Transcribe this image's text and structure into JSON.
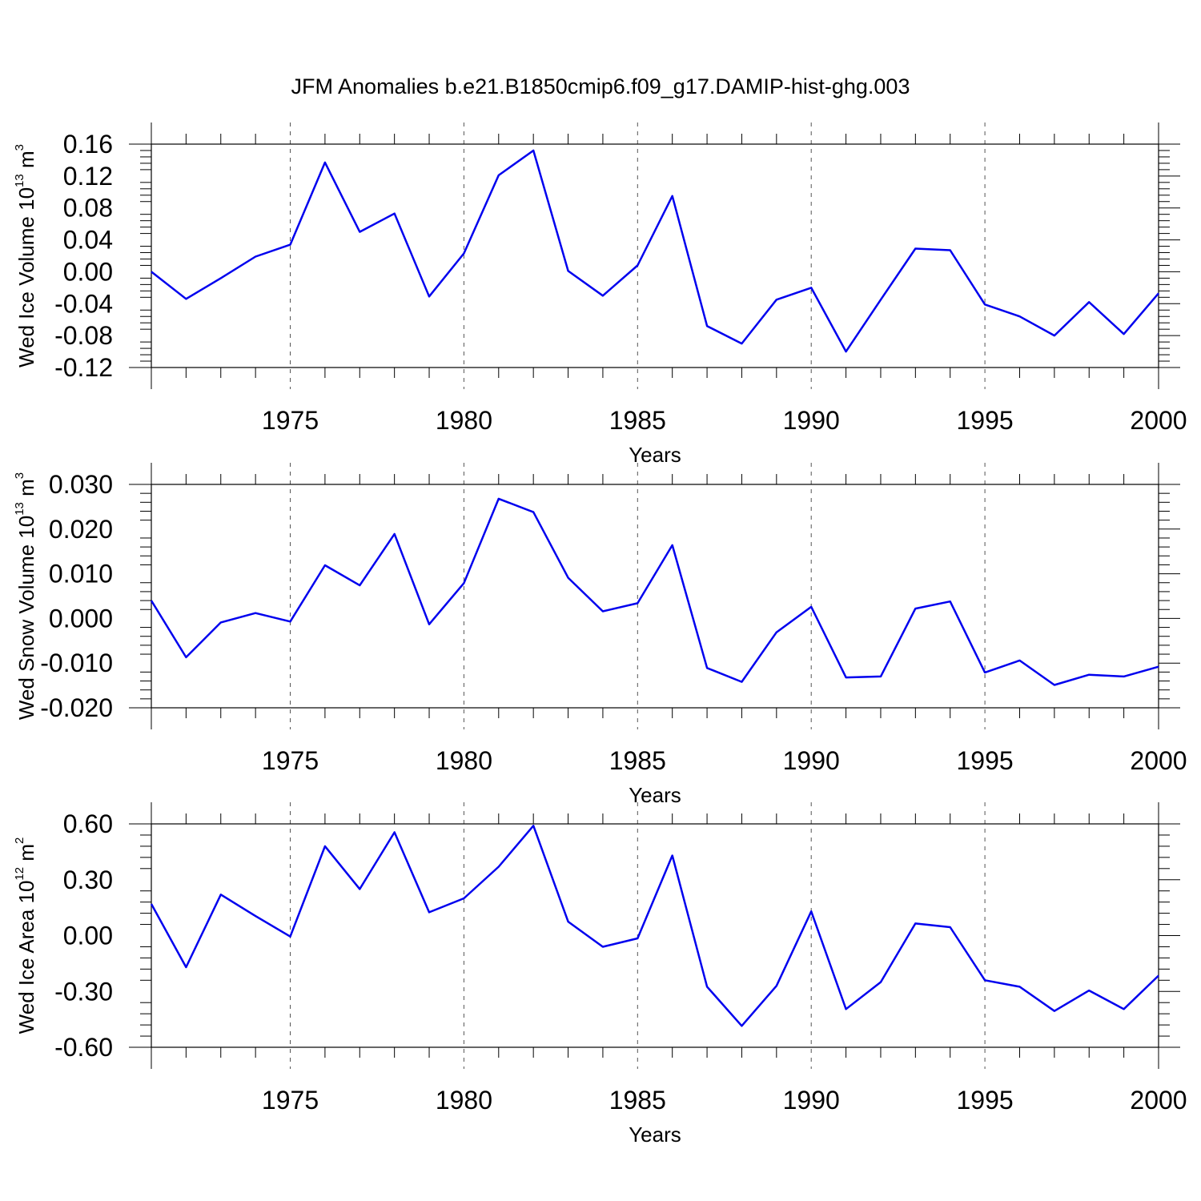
{
  "title": "JFM Anomalies b.e21.B1850cmip6.f09_g17.DAMIP-hist-ghg.003",
  "colors": {
    "line": "#0000ee"
  },
  "chart_data": [
    {
      "type": "line",
      "ylabel": "Wed Ice Volume 10",
      "ylabel_exp": "13",
      "ylabel_unit": "m",
      "ylabel_unit_exp": "3",
      "xlabel": "Years",
      "xlim": [
        1971,
        2000
      ],
      "ylim": [
        -0.12,
        0.16
      ],
      "yticks": [
        "0.16",
        "0.12",
        "0.08",
        "0.04",
        "0.00",
        "-0.04",
        "-0.08",
        "-0.12"
      ],
      "ytick_values": [
        0.16,
        0.12,
        0.08,
        0.04,
        0.0,
        -0.04,
        -0.08,
        -0.12
      ],
      "xticks": [
        "1975",
        "1980",
        "1985",
        "1990",
        "1995",
        "2000"
      ],
      "xtick_values": [
        1975,
        1980,
        1985,
        1990,
        1995,
        2000
      ],
      "x": [
        1971,
        1972,
        1973,
        1974,
        1975,
        1976,
        1977,
        1978,
        1979,
        1980,
        1981,
        1982,
        1983,
        1984,
        1985,
        1986,
        1987,
        1988,
        1989,
        1990,
        1991,
        1992,
        1993,
        1994,
        1995,
        1996,
        1997,
        1998,
        1999,
        2000
      ],
      "y": [
        0.0,
        -0.034,
        -0.008,
        0.019,
        0.034,
        0.137,
        0.05,
        0.073,
        -0.031,
        0.023,
        0.121,
        0.152,
        0.001,
        -0.03,
        0.008,
        0.095,
        -0.068,
        -0.09,
        -0.035,
        -0.02,
        -0.1,
        -0.035,
        0.029,
        0.027,
        -0.041,
        -0.056,
        -0.08,
        -0.038,
        -0.078,
        -0.027
      ],
      "grid": "vertical dashed at labeled years"
    },
    {
      "type": "line",
      "ylabel": "Wed Snow Volume 10",
      "ylabel_exp": "13",
      "ylabel_unit": "m",
      "ylabel_unit_exp": "3",
      "xlabel": "Years",
      "xlim": [
        1971,
        2000
      ],
      "ylim": [
        -0.02,
        0.03
      ],
      "yticks": [
        "0.030",
        "0.020",
        "0.010",
        "0.000",
        "-0.010",
        "-0.020"
      ],
      "ytick_values": [
        0.03,
        0.02,
        0.01,
        0.0,
        -0.01,
        -0.02
      ],
      "xticks": [
        "1975",
        "1980",
        "1985",
        "1990",
        "1995",
        "2000"
      ],
      "xtick_values": [
        1975,
        1980,
        1985,
        1990,
        1995,
        2000
      ],
      "x": [
        1971,
        1972,
        1973,
        1974,
        1975,
        1976,
        1977,
        1978,
        1979,
        1980,
        1981,
        1982,
        1983,
        1984,
        1985,
        1986,
        1987,
        1988,
        1989,
        1990,
        1991,
        1992,
        1993,
        1994,
        1995,
        1996,
        1997,
        1998,
        1999,
        2000
      ],
      "y": [
        0.004,
        -0.0087,
        -0.0009,
        0.0012,
        -0.0007,
        0.0119,
        0.0074,
        0.0189,
        -0.0013,
        0.0079,
        0.0268,
        0.0238,
        0.0091,
        0.0016,
        0.0034,
        0.0164,
        -0.0111,
        -0.0142,
        -0.0031,
        0.0026,
        -0.0132,
        -0.013,
        0.0022,
        0.0038,
        -0.0121,
        -0.0094,
        -0.0149,
        -0.0126,
        -0.013,
        -0.0108
      ],
      "grid": "vertical dashed at labeled years"
    },
    {
      "type": "line",
      "ylabel": "Wed Ice Area 10",
      "ylabel_exp": "12",
      "ylabel_unit": "m",
      "ylabel_unit_exp": "2",
      "xlabel": "Years",
      "xlim": [
        1971,
        2000
      ],
      "ylim": [
        -0.6,
        0.6
      ],
      "yticks": [
        "0.60",
        "0.30",
        "0.00",
        "-0.30",
        "-0.60"
      ],
      "ytick_values": [
        0.6,
        0.3,
        0.0,
        -0.3,
        -0.6
      ],
      "xticks": [
        "1975",
        "1980",
        "1985",
        "1990",
        "1995",
        "2000"
      ],
      "xtick_values": [
        1975,
        1980,
        1985,
        1990,
        1995,
        2000
      ],
      "x": [
        1971,
        1972,
        1973,
        1974,
        1975,
        1976,
        1977,
        1978,
        1979,
        1980,
        1981,
        1982,
        1983,
        1984,
        1985,
        1986,
        1987,
        1988,
        1989,
        1990,
        1991,
        1992,
        1993,
        1994,
        1995,
        1996,
        1997,
        1998,
        1999,
        2000
      ],
      "y": [
        0.17,
        -0.17,
        0.22,
        0.105,
        -0.005,
        0.48,
        0.25,
        0.555,
        0.125,
        0.2,
        0.37,
        0.59,
        0.075,
        -0.06,
        -0.015,
        0.43,
        -0.275,
        -0.485,
        -0.27,
        0.13,
        -0.395,
        -0.25,
        0.065,
        0.045,
        -0.24,
        -0.275,
        -0.405,
        -0.295,
        -0.395,
        -0.215
      ],
      "grid": "vertical dashed at labeled years"
    }
  ]
}
